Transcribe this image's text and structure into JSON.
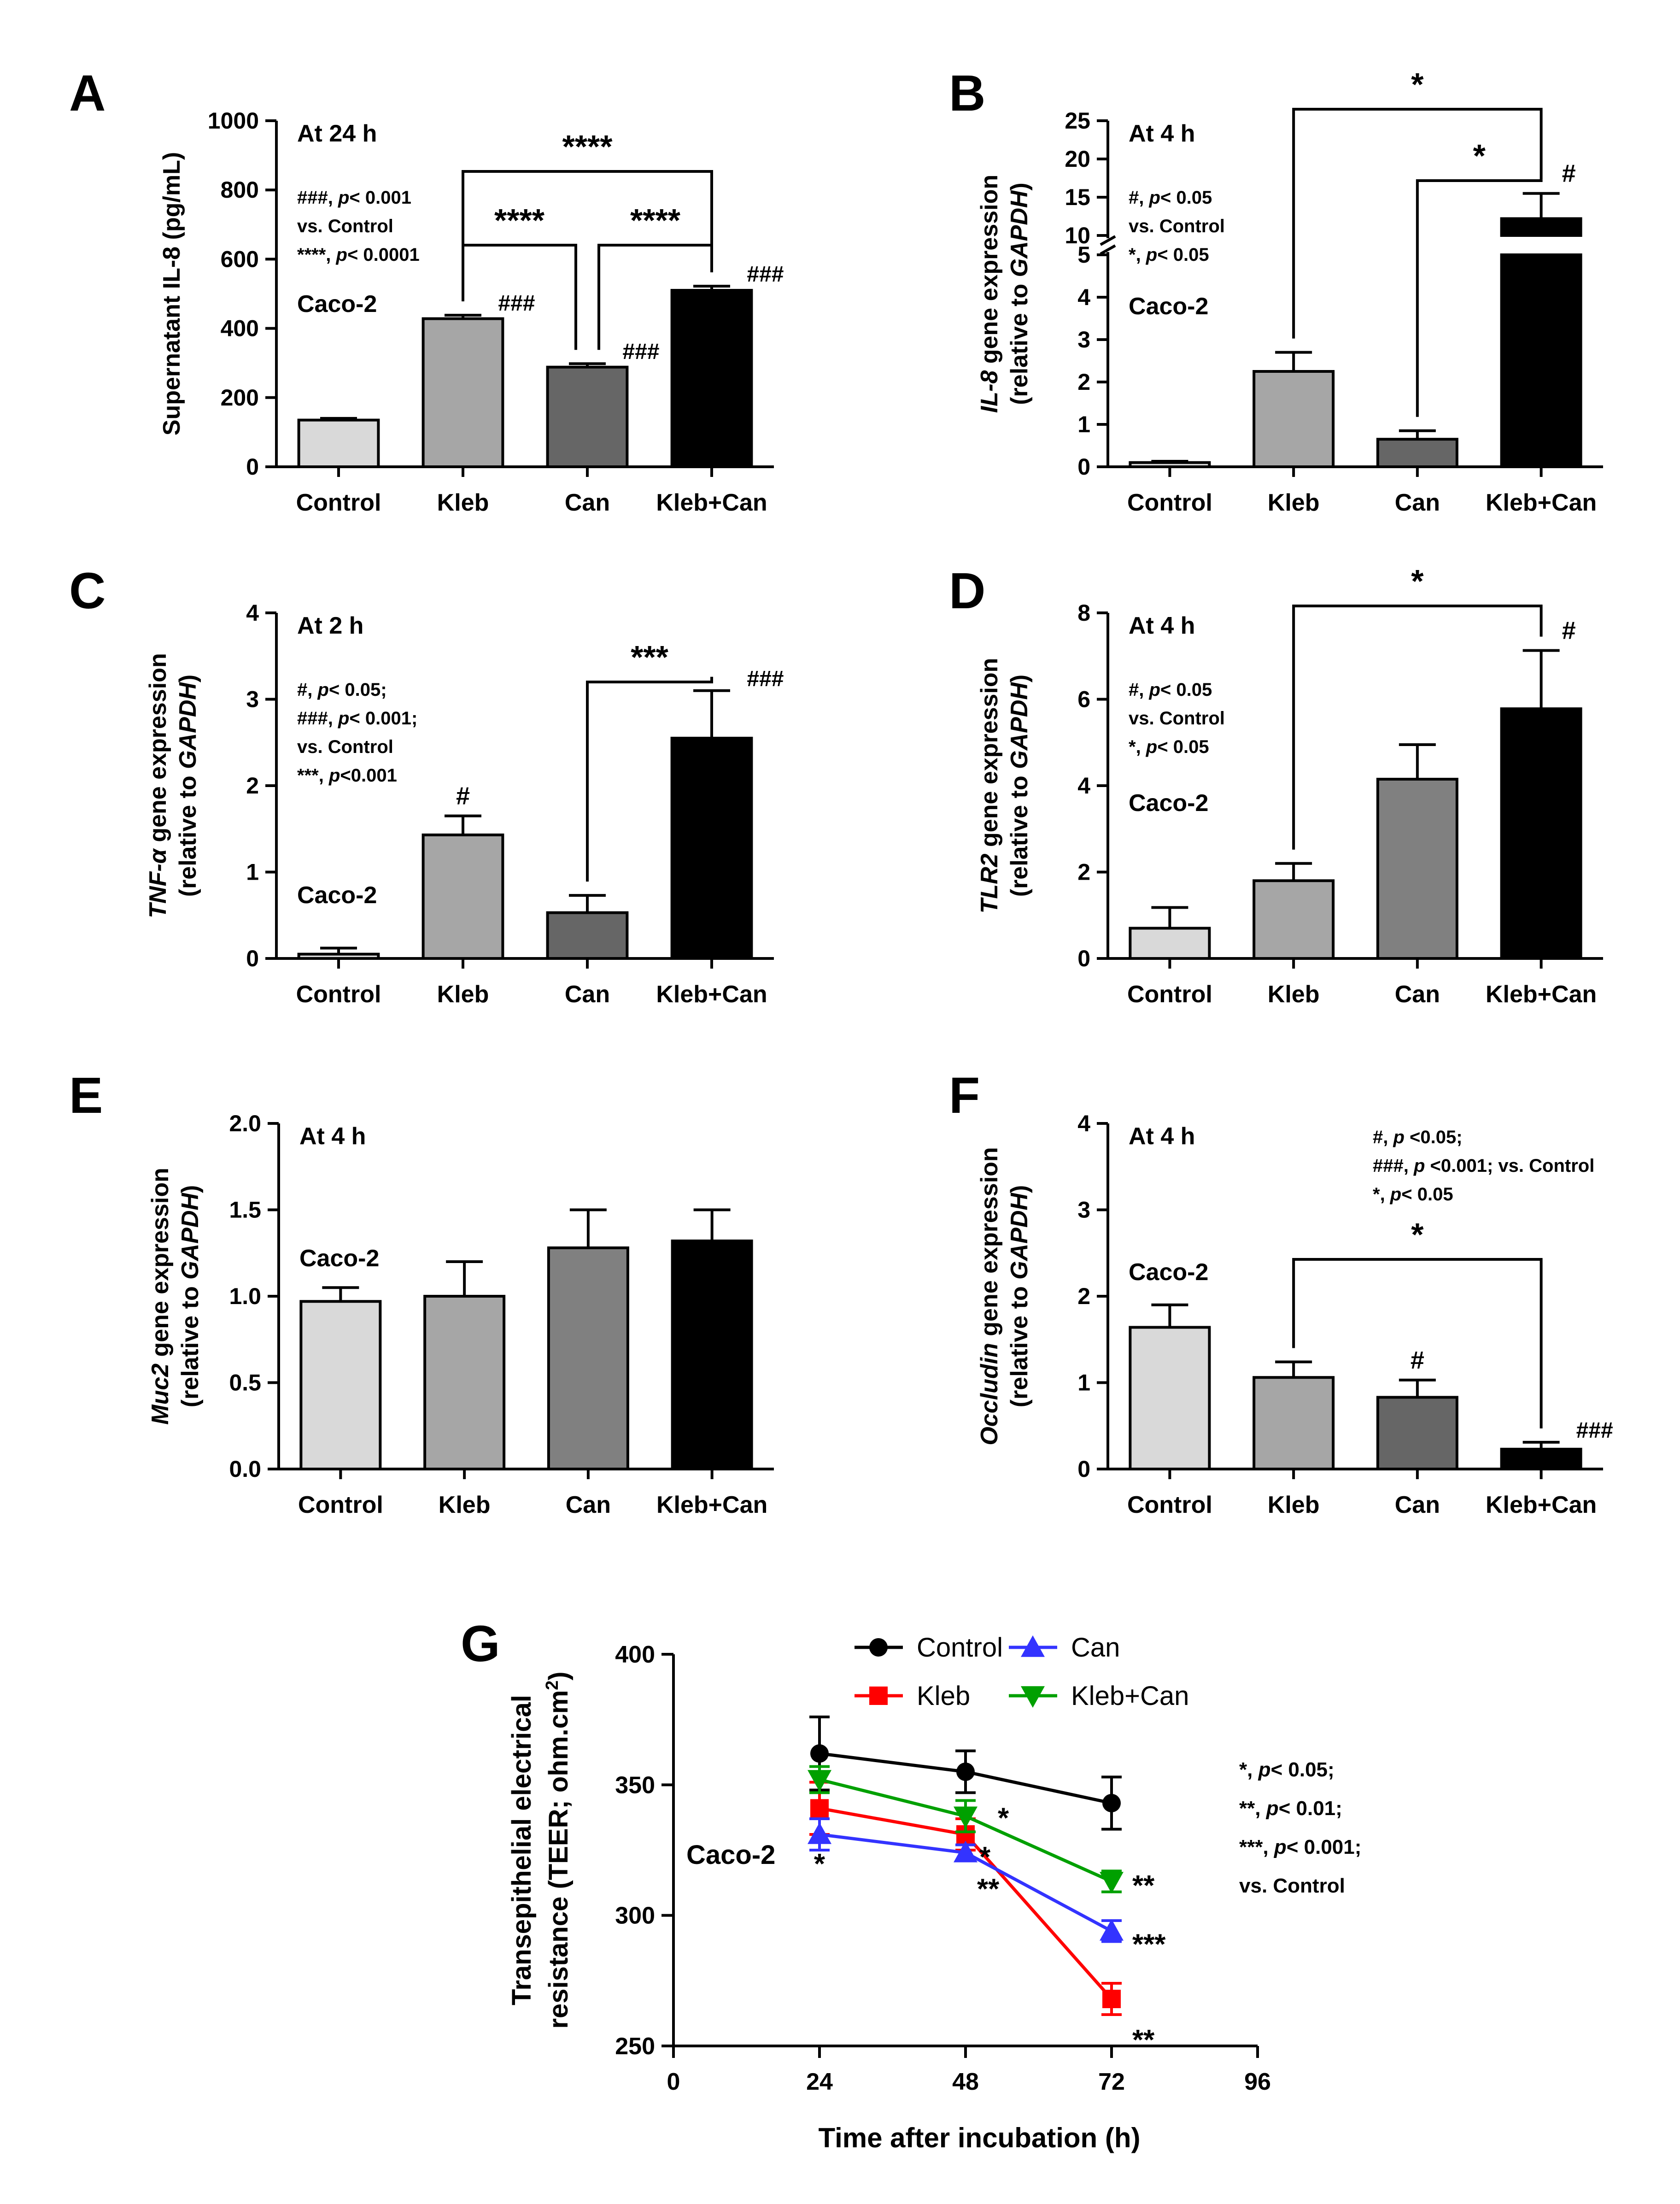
{
  "chart_data": [
    {
      "panel": "A",
      "type": "bar",
      "categories": [
        "Control",
        "Kleb",
        "Can",
        "Kleb+Can"
      ],
      "values": [
        135,
        428,
        288,
        510
      ],
      "errors": [
        5,
        10,
        10,
        12
      ],
      "bar_colors": [
        "#d9d9d9",
        "#a6a6a6",
        "#666666",
        "#000000"
      ],
      "ylabel": "Supernatant IL-8 (pg/mL)",
      "ylim": [
        0,
        1000
      ],
      "yticks": [
        "0",
        "200",
        "400",
        "600",
        "800",
        "1000"
      ],
      "info": [
        "At 24 h",
        "###, p< 0.001",
        "vs. Control",
        "****, p< 0.0001",
        "Caco-2"
      ],
      "bar_labels": [
        "",
        "###",
        "###",
        "###"
      ],
      "brackets": [
        {
          "from": 1,
          "to": 3,
          "label": "****"
        },
        {
          "from": 1,
          "to": 2,
          "label": "****"
        },
        {
          "from": 2,
          "to": 3,
          "label": "****"
        }
      ]
    },
    {
      "panel": "B",
      "type": "bar",
      "categories": [
        "Control",
        "Kleb",
        "Can",
        "Kleb+Can"
      ],
      "values": [
        0.1,
        2.25,
        0.65,
        12.2
      ],
      "errors": [
        0.03,
        0.45,
        0.2,
        3.3
      ],
      "bar_colors": [
        "#d9d9d9",
        "#a6a6a6",
        "#666666",
        "#000000"
      ],
      "ylabel_plain": "gene expression",
      "ylabel_italic": "IL-8",
      "ylabel2_plain": "(relative to ",
      "ylabel2_italic": "GAPDH",
      "ylabel2_end": ")",
      "axis_break": [
        5,
        10
      ],
      "ylim": [
        0,
        25
      ],
      "yticks": [
        "0",
        "1",
        "2",
        "3",
        "4",
        "5",
        "10",
        "15",
        "20",
        "25"
      ],
      "info": [
        "At 4 h",
        "#, p< 0.05",
        "vs. Control",
        "*, p< 0.05",
        "Caco-2"
      ],
      "bar_labels": [
        "",
        "",
        "",
        "#"
      ],
      "brackets": [
        {
          "from": 1,
          "to": 3,
          "label": "*"
        },
        {
          "from": 2,
          "to": 3,
          "label": "*"
        }
      ]
    },
    {
      "panel": "C",
      "type": "bar",
      "categories": [
        "Control",
        "Kleb",
        "Can",
        "Kleb+Can"
      ],
      "values": [
        0.05,
        1.43,
        0.53,
        2.55
      ],
      "errors": [
        0.07,
        0.22,
        0.2,
        0.55
      ],
      "bar_colors": [
        "#d9d9d9",
        "#a6a6a6",
        "#666666",
        "#000000"
      ],
      "ylabel_italic": "TNF-α",
      "ylabel_plain": " gene expression",
      "ylabel2_plain": "(relative to ",
      "ylabel2_italic": "GAPDH",
      "ylabel2_end": ")",
      "ylim": [
        0,
        4
      ],
      "yticks": [
        "0",
        "1",
        "2",
        "3",
        "4"
      ],
      "info": [
        "At 2 h",
        "#, p< 0.05;",
        "###, p< 0.001;",
        "vs. Control",
        "***, p<0.001",
        "Caco-2"
      ],
      "bar_labels": [
        "",
        "#",
        "",
        "###"
      ],
      "brackets": [
        {
          "from": 2,
          "to": 3,
          "label": "***"
        }
      ]
    },
    {
      "panel": "D",
      "type": "bar",
      "categories": [
        "Control",
        "Kleb",
        "Can",
        "Kleb+Can"
      ],
      "values": [
        0.7,
        1.8,
        4.15,
        5.78
      ],
      "errors": [
        0.48,
        0.4,
        0.8,
        1.35
      ],
      "bar_colors": [
        "#d9d9d9",
        "#a6a6a6",
        "#808080",
        "#000000"
      ],
      "ylabel_italic": "TLR2",
      "ylabel_plain": " gene expression",
      "ylabel2_plain": "(relative to ",
      "ylabel2_italic": "GAPDH",
      "ylabel2_end": ")",
      "ylim": [
        0,
        8
      ],
      "yticks": [
        "0",
        "2",
        "4",
        "6",
        "8"
      ],
      "info": [
        "At 4 h",
        "#, p< 0.05",
        "vs. Control",
        "*, p< 0.05",
        "Caco-2"
      ],
      "bar_labels": [
        "",
        "",
        "",
        "#"
      ],
      "brackets": [
        {
          "from": 1,
          "to": 3,
          "label": "*"
        }
      ]
    },
    {
      "panel": "E",
      "type": "bar",
      "categories": [
        "Control",
        "Kleb",
        "Can",
        "Kleb+Can"
      ],
      "values": [
        0.97,
        1.0,
        1.28,
        1.32
      ],
      "errors": [
        0.08,
        0.2,
        0.22,
        0.18
      ],
      "bar_colors": [
        "#d9d9d9",
        "#a6a6a6",
        "#808080",
        "#000000"
      ],
      "ylabel_italic": "Muc2",
      "ylabel_plain": " gene expression",
      "ylabel2_plain": "(relative to ",
      "ylabel2_italic": "GAPDH",
      "ylabel2_end": ")",
      "ylim": [
        0,
        2
      ],
      "yticks": [
        "0.0",
        "0.5",
        "1.0",
        "1.5",
        "2.0"
      ],
      "info": [
        "At 4 h",
        "Caco-2"
      ],
      "bar_labels": [
        "",
        "",
        "",
        ""
      ],
      "brackets": []
    },
    {
      "panel": "F",
      "type": "bar",
      "categories": [
        "Control",
        "Kleb",
        "Can",
        "Kleb+Can"
      ],
      "values": [
        1.64,
        1.06,
        0.83,
        0.23
      ],
      "errors": [
        0.26,
        0.18,
        0.2,
        0.08
      ],
      "bar_colors": [
        "#d9d9d9",
        "#a6a6a6",
        "#666666",
        "#000000"
      ],
      "ylabel_italic": "Occludin",
      "ylabel_plain": " gene expression",
      "ylabel2_plain": "(relative to ",
      "ylabel2_italic": "GAPDH",
      "ylabel2_end": ")",
      "ylim": [
        0,
        4
      ],
      "yticks": [
        "0",
        "1",
        "2",
        "3",
        "4"
      ],
      "info": [
        "At 4 h",
        "Caco-2"
      ],
      "info_right": [
        "#, p <0.05;",
        "###, p <0.001; vs. Control",
        "*, p< 0.05"
      ],
      "bar_labels": [
        "",
        "",
        "#",
        "###"
      ],
      "brackets": [
        {
          "from": 1,
          "to": 3,
          "label": "*"
        }
      ]
    },
    {
      "panel": "G",
      "type": "line",
      "x": [
        24,
        48,
        72
      ],
      "xlabel": "Time after incubation (h)",
      "ylabel": "Transepithelial electrical",
      "ylabel2": "resistance (TEER; ohm.cm",
      "ylabel2_sup": "2",
      "ylabel2_end": ")",
      "xlim": [
        0,
        96
      ],
      "ylim": [
        250,
        400
      ],
      "xticks": [
        "0",
        "24",
        "48",
        "72",
        "96"
      ],
      "yticks": [
        "250",
        "300",
        "350",
        "400"
      ],
      "series": [
        {
          "name": "Control",
          "color": "#000000",
          "marker": "circle",
          "values": [
            362,
            355,
            343
          ],
          "errors": [
            14,
            8,
            10
          ],
          "sig": [
            "",
            "",
            ""
          ]
        },
        {
          "name": "Kleb",
          "color": "#ff0000",
          "marker": "square",
          "values": [
            341,
            331,
            268
          ],
          "errors": [
            10,
            6,
            6
          ],
          "sig": [
            "",
            "*",
            "**"
          ]
        },
        {
          "name": "Can",
          "color": "#3333ff",
          "marker": "triangle-up",
          "values": [
            331,
            324,
            294
          ],
          "errors": [
            6,
            3,
            4
          ],
          "sig": [
            "*",
            "**",
            "***"
          ]
        },
        {
          "name": "Kleb+Can",
          "color": "#00a000",
          "marker": "triangle-down",
          "values": [
            352,
            338,
            313
          ],
          "errors": [
            5,
            6,
            4
          ],
          "sig": [
            "",
            "*",
            "**"
          ]
        }
      ],
      "info": [
        "Caco-2"
      ],
      "info_right": [
        "*, p< 0.05;",
        "**, p< 0.01;",
        "***, p< 0.001;",
        "vs. Control"
      ]
    }
  ]
}
